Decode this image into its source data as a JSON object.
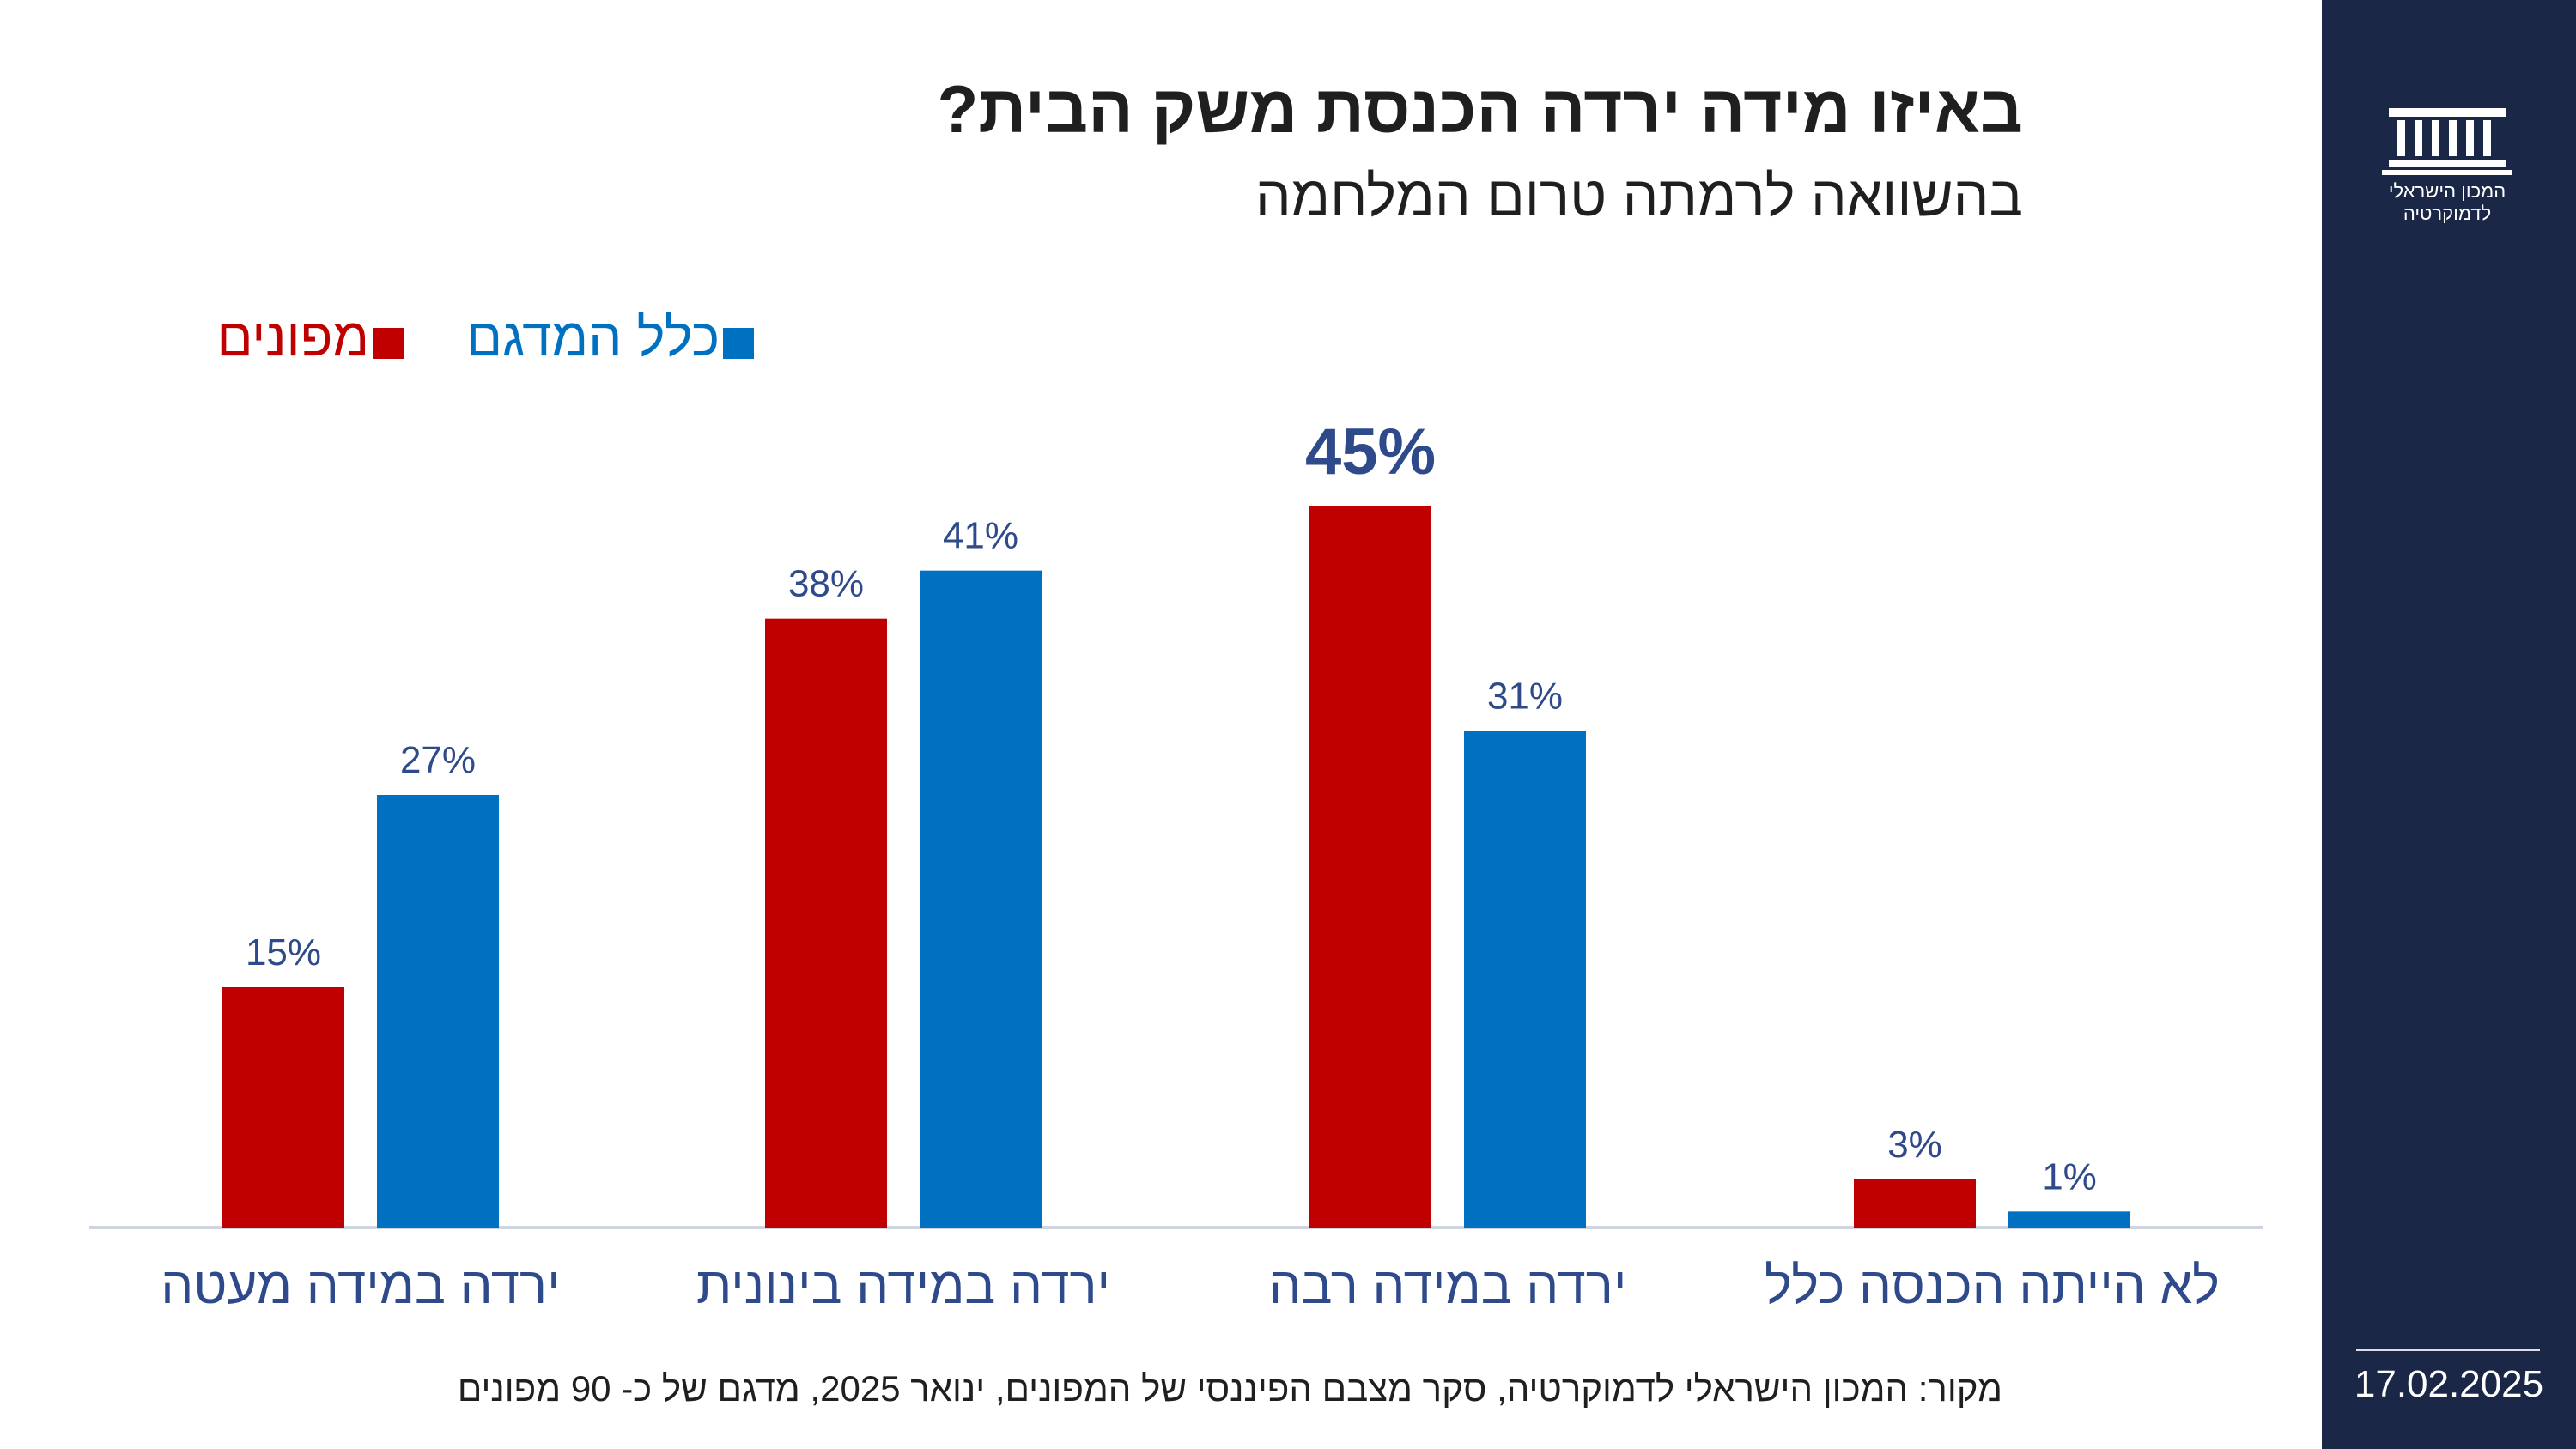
{
  "title": "באיזו מידה ירדה הכנסת משק הבית?",
  "subtitle": "בהשוואה לרמתה טרום המלחמה",
  "source": "מקור: המכון הישראלי לדמוקרטיה,  סקר מצבם הפיננסי של המפונים, ינואר 2025, מדגם של כ- 90 מפונים",
  "sidebar": {
    "logo_line1": "המכון הישראלי",
    "logo_line2": "לדמוקרטיה",
    "logo_icon": "parliament-building-icon",
    "date": "17.02.2025"
  },
  "colors": {
    "evacuees": "#c00000",
    "full_sample": "#0070c0",
    "labels": "#2e4a8a",
    "sidebar_bg": "#1b2746"
  },
  "chart_data": {
    "type": "bar",
    "categories": [
      "ירדה במידה מעטה",
      "ירדה במידה בינונית",
      "ירדה במידה רבה",
      "לא הייתה הכנסה כלל"
    ],
    "series": [
      {
        "name": "מפונים",
        "color": "#c00000",
        "values": [
          15,
          38,
          45,
          3
        ],
        "labels": [
          "15%",
          "38%",
          "45%",
          "3%"
        ]
      },
      {
        "name": "כלל המדגם",
        "color": "#0070c0",
        "values": [
          27,
          41,
          31,
          1
        ],
        "labels": [
          "27%",
          "41%",
          "31%",
          "1%"
        ]
      }
    ],
    "highlight": {
      "series": 0,
      "category": 2
    },
    "ylim": [
      0,
      45
    ],
    "grid": false,
    "legend_position": "top-left"
  }
}
